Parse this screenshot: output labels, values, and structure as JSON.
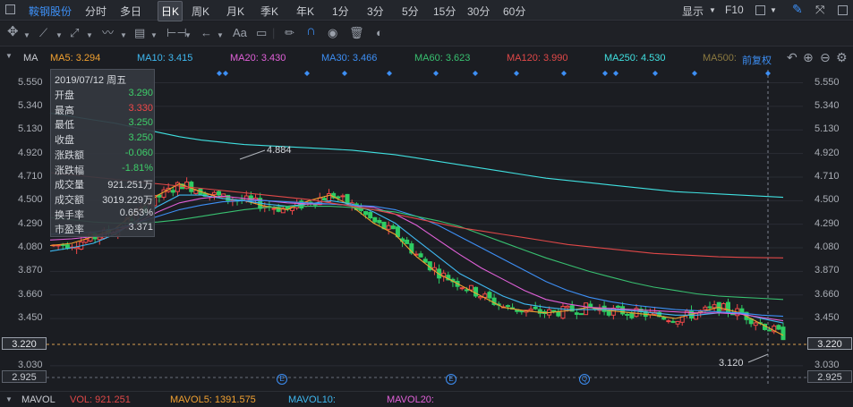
{
  "topbar": {
    "stock_name": "鞍钢股份",
    "periods": [
      "分时",
      "多日",
      "日K",
      "周K",
      "月K",
      "季K",
      "年K",
      "1分",
      "3分",
      "5分",
      "15分",
      "30分",
      "60分"
    ],
    "active_period": "日K",
    "display_label": "显示",
    "f10_label": "F10"
  },
  "toolbar": {
    "text_tool_label": "Aa"
  },
  "ma_bar": {
    "label": "MA",
    "items": [
      {
        "text": "MA5: 3.294",
        "color": "#f0a030"
      },
      {
        "text": "MA10: 3.415",
        "color": "#3fb8f0"
      },
      {
        "text": "MA20: 3.430",
        "color": "#e060d8"
      },
      {
        "text": "MA30: 3.466",
        "color": "#3d8ff5"
      },
      {
        "text": "MA60: 3.623",
        "color": "#38c070"
      },
      {
        "text": "MA120: 3.990",
        "color": "#e04848"
      },
      {
        "text": "MA250: 4.530",
        "color": "#40e0e0"
      },
      {
        "text": "MA500:",
        "color": "#8c7a40"
      }
    ],
    "adjust_label": "前复权"
  },
  "y_axis_ticks": [
    "5.550",
    "5.340",
    "5.130",
    "4.920",
    "4.710",
    "4.500",
    "4.290",
    "4.080",
    "3.870",
    "3.660",
    "3.450",
    "3.220",
    "3.030",
    "2.925"
  ],
  "tooltip": {
    "date": "2019/07/12 周五",
    "rows": [
      {
        "k": "开盘",
        "v": "3.290",
        "color": "#3ecf6a"
      },
      {
        "k": "最高",
        "v": "3.330",
        "color": "#f04848"
      },
      {
        "k": "最低",
        "v": "3.250",
        "color": "#3ecf6a"
      },
      {
        "k": "收盘",
        "v": "3.250",
        "color": "#3ecf6a"
      },
      {
        "k": "涨跌额",
        "v": "-0.060",
        "color": "#3ecf6a"
      },
      {
        "k": "涨跌幅",
        "v": "-1.81%",
        "color": "#3ecf6a"
      },
      {
        "k": "成交量",
        "v": "921.251万",
        "color": "#d6d9de"
      },
      {
        "k": "成交额",
        "v": "3019.229万",
        "color": "#d6d9de"
      },
      {
        "k": "换手率",
        "v": "0.653%",
        "color": "#d6d9de"
      },
      {
        "k": "市盈率",
        "v": "3.371",
        "color": "#d6d9de"
      }
    ]
  },
  "annotations": {
    "high_label": "4.884",
    "low_label": "3.120"
  },
  "price_tags": {
    "current": "3.220",
    "bottom": "2.925"
  },
  "event_markers": [
    "E",
    "E",
    "Q"
  ],
  "bottom_bar": {
    "name": "MAVOL",
    "items": [
      {
        "text": "VOL: 921.251",
        "color": "#e04848"
      },
      {
        "text": "MAVOL5: 1391.575",
        "color": "#f0a030"
      },
      {
        "text": "MAVOL10:",
        "color": "#3fb8f0"
      },
      {
        "text": "MAVOL20:",
        "color": "#e060d8"
      }
    ]
  },
  "chart_data": {
    "type": "line",
    "title": "",
    "ylim": [
      2.925,
      5.65
    ],
    "candles_note": "daily candlesticks, red up / green down",
    "series": [
      {
        "name": "MA5",
        "color": "#f0a030",
        "values": [
          4.1,
          4.12,
          4.18,
          4.25,
          4.4,
          4.55,
          4.65,
          4.58,
          4.52,
          4.5,
          4.45,
          4.42,
          4.5,
          4.55,
          4.45,
          4.3,
          4.2,
          4.0,
          3.85,
          3.75,
          3.65,
          3.55,
          3.52,
          3.5,
          3.52,
          3.55,
          3.52,
          3.5,
          3.48,
          3.45,
          3.5,
          3.55,
          3.5,
          3.4,
          3.3
        ]
      },
      {
        "name": "MA10",
        "color": "#3fb8f0",
        "values": [
          4.05,
          4.08,
          4.12,
          4.2,
          4.32,
          4.45,
          4.55,
          4.55,
          4.52,
          4.5,
          4.47,
          4.45,
          4.47,
          4.5,
          4.47,
          4.4,
          4.3,
          4.15,
          4.0,
          3.85,
          3.75,
          3.65,
          3.58,
          3.55,
          3.53,
          3.53,
          3.53,
          3.52,
          3.5,
          3.48,
          3.48,
          3.5,
          3.5,
          3.45,
          3.41
        ]
      },
      {
        "name": "MA20",
        "color": "#e060d8",
        "values": [
          4.15,
          4.16,
          4.18,
          4.22,
          4.3,
          4.4,
          4.48,
          4.52,
          4.54,
          4.52,
          4.5,
          4.48,
          4.47,
          4.47,
          4.46,
          4.44,
          4.38,
          4.28,
          4.15,
          4.02,
          3.9,
          3.8,
          3.7,
          3.62,
          3.58,
          3.55,
          3.54,
          3.53,
          3.52,
          3.51,
          3.5,
          3.5,
          3.49,
          3.46,
          3.43
        ]
      },
      {
        "name": "MA30",
        "color": "#3d8ff5",
        "values": [
          4.2,
          4.21,
          4.22,
          4.25,
          4.3,
          4.36,
          4.42,
          4.46,
          4.49,
          4.5,
          4.5,
          4.49,
          4.48,
          4.47,
          4.46,
          4.45,
          4.42,
          4.36,
          4.28,
          4.18,
          4.08,
          3.98,
          3.88,
          3.78,
          3.7,
          3.64,
          3.6,
          3.57,
          3.55,
          3.53,
          3.52,
          3.51,
          3.5,
          3.48,
          3.47
        ]
      },
      {
        "name": "MA60",
        "color": "#38c070",
        "values": [
          4.35,
          4.33,
          4.31,
          4.3,
          4.3,
          4.31,
          4.33,
          4.36,
          4.39,
          4.42,
          4.44,
          4.45,
          4.45,
          4.45,
          4.44,
          4.42,
          4.4,
          4.36,
          4.32,
          4.27,
          4.2,
          4.13,
          4.06,
          3.99,
          3.93,
          3.87,
          3.82,
          3.77,
          3.73,
          3.7,
          3.67,
          3.65,
          3.64,
          3.63,
          3.62
        ]
      },
      {
        "name": "MA120",
        "color": "#e04848",
        "values": [
          4.75,
          4.73,
          4.71,
          4.69,
          4.67,
          4.65,
          4.63,
          4.61,
          4.59,
          4.57,
          4.55,
          4.53,
          4.51,
          4.48,
          4.45,
          4.42,
          4.38,
          4.34,
          4.3,
          4.26,
          4.23,
          4.2,
          4.17,
          4.14,
          4.11,
          4.09,
          4.07,
          4.05,
          4.03,
          4.02,
          4.01,
          4.0,
          3.995,
          3.992,
          3.99
        ]
      },
      {
        "name": "MA250",
        "color": "#40e0e0",
        "values": [
          5.28,
          5.25,
          5.22,
          5.19,
          5.15,
          5.11,
          5.07,
          5.04,
          5.02,
          5.0,
          4.99,
          4.98,
          4.97,
          4.96,
          4.95,
          4.93,
          4.91,
          4.88,
          4.85,
          4.82,
          4.79,
          4.76,
          4.73,
          4.7,
          4.68,
          4.66,
          4.64,
          4.62,
          4.6,
          4.58,
          4.57,
          4.56,
          4.55,
          4.54,
          4.53
        ]
      }
    ]
  }
}
